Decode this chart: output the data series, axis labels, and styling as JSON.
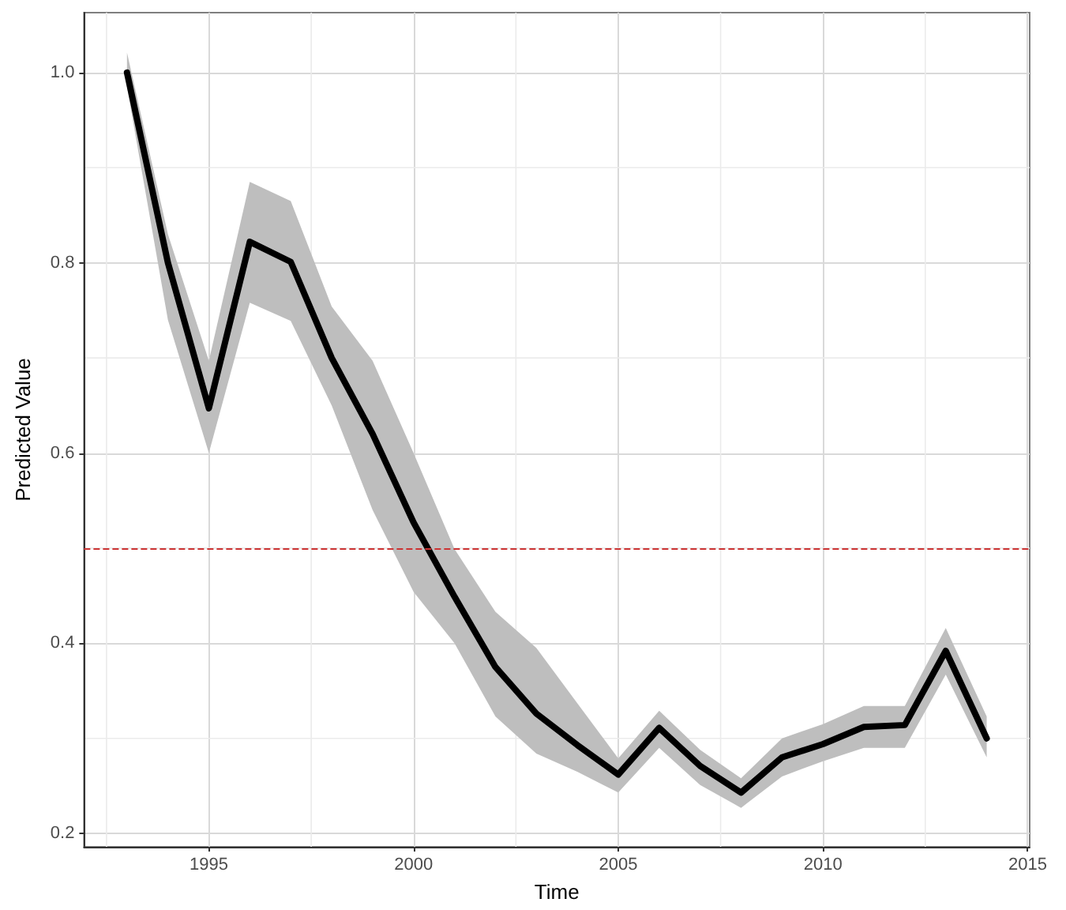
{
  "chart_data": {
    "type": "line",
    "xlabel": "Time",
    "ylabel": "Predicted Value",
    "x": [
      1993,
      1994,
      1995,
      1996,
      1997,
      1998,
      1999,
      2000,
      2001,
      2002,
      2003,
      2004,
      2005,
      2006,
      2007,
      2008,
      2009,
      2010,
      2011,
      2012,
      2013,
      2014
    ],
    "series": [
      {
        "color": "#000000",
        "values": [
          1.0,
          0.8,
          0.647,
          0.822,
          0.801,
          0.7,
          0.62,
          0.527,
          0.449,
          0.375,
          0.326,
          0.293,
          0.262,
          0.311,
          0.271,
          0.243,
          0.28,
          0.294,
          0.312,
          0.314,
          0.392,
          0.3
        ],
        "lower": [
          0.985,
          0.74,
          0.6,
          0.758,
          0.739,
          0.65,
          0.54,
          0.454,
          0.4,
          0.323,
          0.284,
          0.265,
          0.243,
          0.29,
          0.251,
          0.227,
          0.26,
          0.276,
          0.29,
          0.29,
          0.367,
          0.28
        ],
        "upper": [
          1.021,
          0.83,
          0.697,
          0.885,
          0.865,
          0.754,
          0.697,
          0.6,
          0.499,
          0.433,
          0.395,
          0.337,
          0.279,
          0.329,
          0.288,
          0.258,
          0.3,
          0.315,
          0.334,
          0.334,
          0.416,
          0.323
        ]
      }
    ],
    "xlim": [
      1991.95,
      2015.05
    ],
    "ylim": [
      0.186,
      1.063
    ],
    "xticks": [
      1995,
      2000,
      2005,
      2010,
      2015
    ],
    "yticks": [
      0.2,
      0.4,
      0.6,
      0.8,
      {
        "value": 1.0,
        "label": "1.0"
      }
    ],
    "ref_lines": [
      {
        "axis": "y",
        "value": 0.5,
        "color": "#cc3333",
        "line_style": "dashed"
      }
    ],
    "grid": true,
    "line_style": "solid",
    "marker": "none"
  }
}
